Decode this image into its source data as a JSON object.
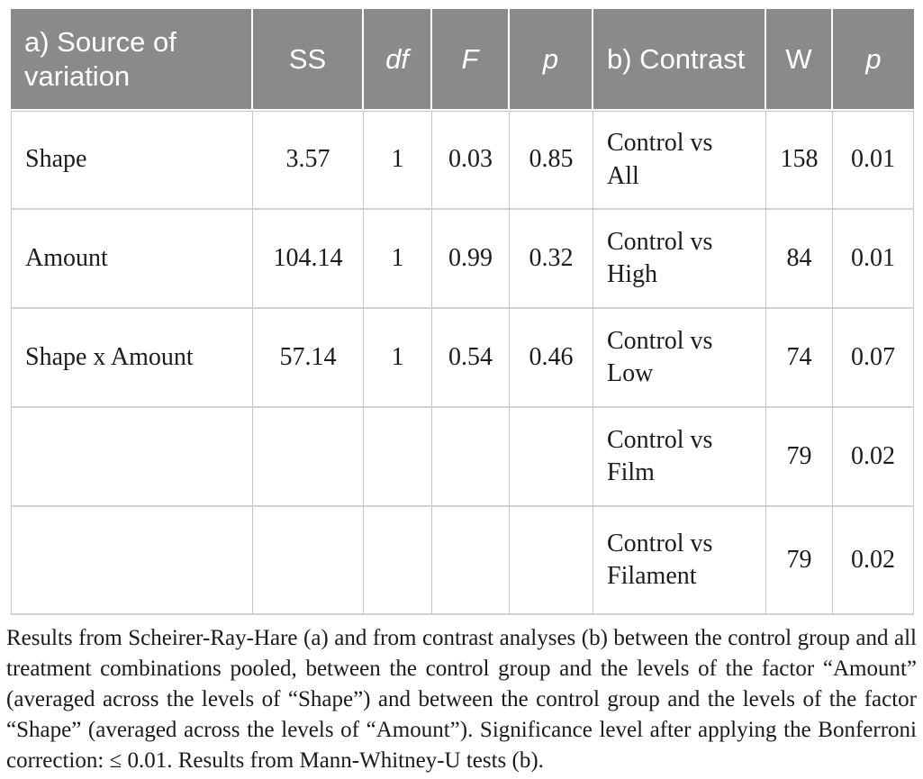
{
  "colors": {
    "header_bg": "#8a8a8a",
    "header_text": "#ffffff",
    "body_text": "#1c1c1c",
    "grid_line": "#c6c6c6",
    "page_bg": "#ffffff"
  },
  "table": {
    "columns": [
      {
        "key": "source",
        "label": "a) Source of variation",
        "italic": false,
        "align": "left"
      },
      {
        "key": "ss",
        "label": "SS",
        "italic": false,
        "align": "center"
      },
      {
        "key": "df",
        "label": "df",
        "italic": true,
        "align": "center"
      },
      {
        "key": "f",
        "label": "F",
        "italic": true,
        "align": "center"
      },
      {
        "key": "p",
        "label": "p",
        "italic": true,
        "align": "center"
      },
      {
        "key": "contrast",
        "label": "b) Contrast",
        "italic": false,
        "align": "left"
      },
      {
        "key": "w",
        "label": "W",
        "italic": false,
        "align": "center"
      },
      {
        "key": "p_b",
        "label": "p",
        "italic": true,
        "align": "center"
      }
    ],
    "rows": [
      {
        "source": "Shape",
        "ss": "3.57",
        "df": "1",
        "f": "0.03",
        "p": "0.85",
        "contrast": "Control vs All",
        "w": "158",
        "p_b": "0.01"
      },
      {
        "source": "Amount",
        "ss": "104.14",
        "df": "1",
        "f": "0.99",
        "p": "0.32",
        "contrast": "Control vs High",
        "w": "84",
        "p_b": "0.01"
      },
      {
        "source": "Shape x Amount",
        "ss": "57.14",
        "df": "1",
        "f": "0.54",
        "p": "0.46",
        "contrast": "Control vs Low",
        "w": "74",
        "p_b": "0.07"
      },
      {
        "source": "",
        "ss": "",
        "df": "",
        "f": "",
        "p": "",
        "contrast": "Control vs Film",
        "w": "79",
        "p_b": "0.02"
      },
      {
        "source": "",
        "ss": "",
        "df": "",
        "f": "",
        "p": "",
        "contrast": "Control vs Filament",
        "w": "79",
        "p_b": "0.02"
      }
    ]
  },
  "caption": "Results from Scheirer-Ray-Hare (a) and from contrast analyses (b) between the control group and all treatment combinations pooled, between the control group and the levels of the factor “Amount” (averaged across the levels of “Shape”) and between the control group and the levels of the factor “Shape” (averaged across the levels of “Amount”). Significance level after applying the Bonferroni correction: ≤ 0.01. Results from Mann-Whitney-U tests (b)."
}
